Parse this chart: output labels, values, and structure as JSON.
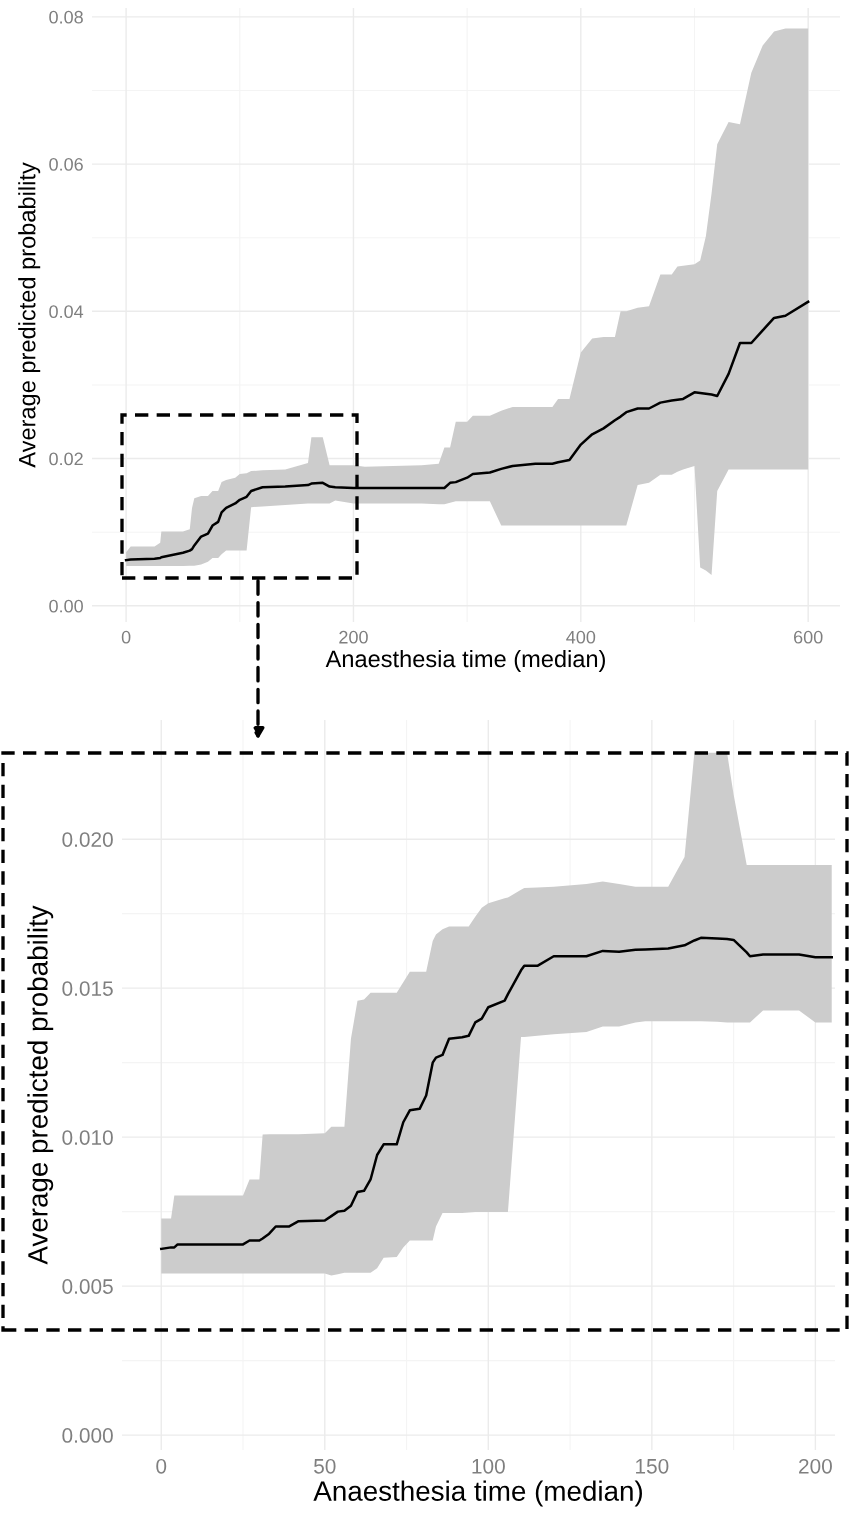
{
  "chart_data": [
    {
      "type": "line",
      "xlabel": "Anaesthesia time (median)",
      "ylabel": "Average predicted probability",
      "xlim": [
        -30,
        628
      ],
      "ylim": [
        -0.0022,
        0.0812
      ],
      "xticks": [
        0,
        200,
        400,
        600
      ],
      "yticks": [
        {
          "value": 0,
          "label": "0.00"
        },
        {
          "value": 0.02,
          "label": "0.02"
        },
        {
          "value": 0.04,
          "label": "0.04"
        },
        {
          "value": 0.06,
          "label": "0.06"
        },
        {
          "value": 0.08,
          "label": "0.08"
        }
      ],
      "grid": true,
      "series": [
        {
          "color": "#000000",
          "x": [
            0,
            4,
            25,
            30,
            31,
            50,
            56,
            58,
            60,
            66,
            72,
            76,
            81,
            84,
            88,
            96,
            100,
            106,
            110,
            120,
            140,
            160,
            163,
            173,
            179,
            184,
            200,
            210,
            260,
            275,
            280,
            285,
            290,
            300,
            305,
            320,
            330,
            340,
            360,
            375,
            380,
            390,
            400,
            410,
            420,
            430,
            435,
            440,
            450,
            460,
            470,
            480,
            485,
            490,
            500,
            505,
            510,
            515,
            520,
            530,
            540,
            550,
            560,
            570,
            580,
            600
          ],
          "values": [
            0.0062,
            0.0063,
            0.0064,
            0.0065,
            0.0066,
            0.0072,
            0.0075,
            0.0077,
            0.0082,
            0.0094,
            0.0098,
            0.0109,
            0.0114,
            0.0127,
            0.0133,
            0.0139,
            0.0144,
            0.0148,
            0.0156,
            0.0161,
            0.0162,
            0.0164,
            0.0166,
            0.0167,
            0.0162,
            0.0161,
            0.016,
            0.016,
            0.016,
            0.016,
            0.016,
            0.0167,
            0.0168,
            0.0174,
            0.0179,
            0.0181,
            0.0186,
            0.019,
            0.0193,
            0.0193,
            0.0195,
            0.0198,
            0.0219,
            0.0233,
            0.0241,
            0.0252,
            0.0257,
            0.0263,
            0.0268,
            0.0268,
            0.0276,
            0.0279,
            0.028,
            0.0281,
            0.029,
            0.0289,
            0.0288,
            0.0287,
            0.0285,
            0.0315,
            0.0357,
            0.0357,
            0.0374,
            0.0391,
            0.0394,
            0.0413
          ],
          "lower": [
            0.00542,
            0.00542,
            0.00542,
            0.00542,
            0.00542,
            0.00542,
            0.00545,
            0.00545,
            0.00545,
            0.0056,
            0.006,
            0.0065,
            0.0065,
            0.007,
            0.0075,
            0.0075,
            0.0075,
            0.0075,
            0.0134,
            0.0135,
            0.0137,
            0.0139,
            0.0139,
            0.0139,
            0.0139,
            0.0143,
            0.0139,
            0.0139,
            0.0139,
            0.0138,
            0.0138,
            0.014,
            0.0142,
            0.0142,
            0.0142,
            0.0142,
            0.0109,
            0.0109,
            0.0109,
            0.0109,
            0.0109,
            0.0109,
            0.0109,
            0.0109,
            0.0109,
            0.0109,
            0.0109,
            0.0109,
            0.0164,
            0.0167,
            0.0178,
            0.0178,
            0.0182,
            0.0185,
            0.019,
            0.0052,
            0.0048,
            0.0042,
            0.0156,
            0.0185,
            0.0185,
            0.0185,
            0.0185,
            0.0185,
            0.0185,
            0.0185
          ],
          "upper": [
            0.00727,
            0.00804,
            0.00804,
            0.00858,
            0.0101,
            0.0101,
            0.0104,
            0.0133,
            0.0146,
            0.0149,
            0.0149,
            0.0156,
            0.0156,
            0.0168,
            0.0171,
            0.0174,
            0.0179,
            0.018,
            0.0183,
            0.0184,
            0.0185,
            0.0194,
            0.0229,
            0.0229,
            0.0191,
            0.0191,
            0.0191,
            0.0189,
            0.0191,
            0.0193,
            0.0215,
            0.0215,
            0.025,
            0.025,
            0.0258,
            0.0258,
            0.0265,
            0.027,
            0.027,
            0.027,
            0.0281,
            0.0281,
            0.0344,
            0.0363,
            0.0365,
            0.0365,
            0.04,
            0.04,
            0.0405,
            0.0407,
            0.045,
            0.045,
            0.0461,
            0.0462,
            0.0464,
            0.0469,
            0.0502,
            0.056,
            0.0627,
            0.0657,
            0.0654,
            0.0724,
            0.0761,
            0.078,
            0.0784,
            0.0784
          ]
        }
      ]
    },
    {
      "type": "line",
      "xlabel": "Anaesthesia time (median)",
      "ylabel": "Average predicted probability",
      "xlim": [
        -12,
        206
      ],
      "ylim": [
        -0.0005,
        0.024
      ],
      "xticks": [
        0,
        50,
        100,
        150,
        200
      ],
      "yticks": [
        {
          "value": 0,
          "label": "0.000"
        },
        {
          "value": 0.005,
          "label": "0.005"
        },
        {
          "value": 0.01,
          "label": "0.010"
        },
        {
          "value": 0.015,
          "label": "0.015"
        },
        {
          "value": 0.02,
          "label": "0.020"
        }
      ],
      "grid": true,
      "series": [
        {
          "color": "#000000",
          "x": [
            0,
            3,
            4,
            5,
            25,
            27,
            30,
            31,
            33,
            35,
            39,
            42,
            50,
            52,
            54,
            56,
            58,
            60,
            62,
            64,
            66,
            68,
            72,
            74,
            76,
            79,
            81,
            83,
            84,
            86,
            88,
            92,
            94,
            96,
            98,
            100,
            105,
            106,
            110,
            111,
            115,
            120,
            130,
            135,
            140,
            145,
            148,
            155,
            160,
            163,
            165,
            170,
            173,
            175,
            179,
            180,
            184,
            195,
            200,
            205
          ],
          "values": [
            0.00625,
            0.0063,
            0.0063,
            0.0064,
            0.0064,
            0.00653,
            0.00653,
            0.0066,
            0.00676,
            0.007,
            0.007,
            0.00718,
            0.0072,
            0.00735,
            0.0075,
            0.00753,
            0.0077,
            0.00816,
            0.0082,
            0.00858,
            0.0094,
            0.00976,
            0.00976,
            0.0105,
            0.0109,
            0.01095,
            0.0114,
            0.0125,
            0.01267,
            0.01276,
            0.0133,
            0.01335,
            0.0134,
            0.01385,
            0.01398,
            0.01436,
            0.01458,
            0.0148,
            0.0156,
            0.01575,
            0.01575,
            0.01607,
            0.01607,
            0.01625,
            0.01622,
            0.01629,
            0.0163,
            0.01633,
            0.01644,
            0.0166,
            0.01669,
            0.01667,
            0.01665,
            0.01662,
            0.0162,
            0.01607,
            0.01613,
            0.01613,
            0.01604,
            0.01604
          ],
          "lower": [
            0.00542,
            0.00542,
            0.00542,
            0.00542,
            0.00542,
            0.00542,
            0.00542,
            0.00542,
            0.00542,
            0.00542,
            0.00542,
            0.00542,
            0.00542,
            0.00536,
            0.0054,
            0.00545,
            0.00545,
            0.00545,
            0.00545,
            0.00545,
            0.0056,
            0.00595,
            0.00598,
            0.0063,
            0.00653,
            0.00653,
            0.00653,
            0.00653,
            0.007,
            0.00745,
            0.00745,
            0.00745,
            0.00747,
            0.00749,
            0.00749,
            0.00749,
            0.00749,
            0.00749,
            0.01336,
            0.01336,
            0.0134,
            0.01345,
            0.01353,
            0.01371,
            0.01371,
            0.01385,
            0.01389,
            0.01389,
            0.01389,
            0.01389,
            0.01389,
            0.01387,
            0.01385,
            0.01385,
            0.01385,
            0.01385,
            0.01425,
            0.01425,
            0.01385,
            0.01385
          ],
          "upper": [
            0.00727,
            0.00727,
            0.00804,
            0.00804,
            0.00804,
            0.00858,
            0.00858,
            0.01009,
            0.0101,
            0.0101,
            0.0101,
            0.0101,
            0.01013,
            0.01035,
            0.01035,
            0.01035,
            0.0133,
            0.01458,
            0.01462,
            0.01485,
            0.01485,
            0.01485,
            0.01485,
            0.0152,
            0.01555,
            0.01555,
            0.01555,
            0.01658,
            0.0168,
            0.01698,
            0.01707,
            0.01707,
            0.01707,
            0.0174,
            0.0177,
            0.01785,
            0.01802,
            0.01804,
            0.0183,
            0.01836,
            0.01838,
            0.0184,
            0.0185,
            0.01858,
            0.0185,
            0.0184,
            0.0184,
            0.0184,
            0.0194,
            0.0229,
            0.0229,
            0.0229,
            0.0229,
            0.0215,
            0.01913,
            0.01913,
            0.01913,
            0.01913,
            0.01913,
            0.01913
          ]
        }
      ]
    }
  ]
}
